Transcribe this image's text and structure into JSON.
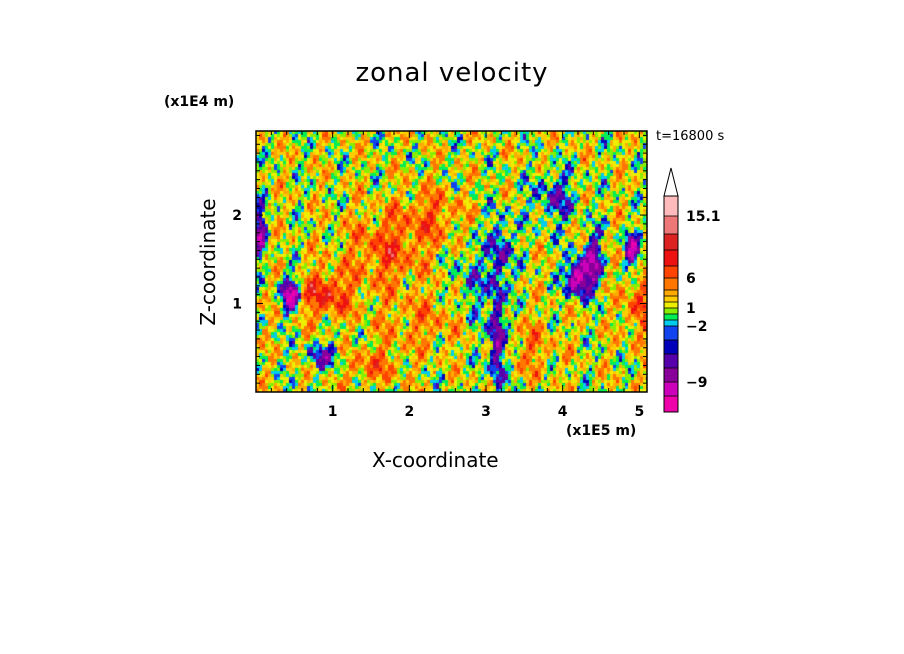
{
  "chart_data": {
    "type": "heatmap",
    "title": "zonal velocity",
    "xlabel": "X-coordinate",
    "ylabel": "Z-coordinate",
    "x_unit": "(x1E5 m)",
    "y_unit": "(x1E4 m)",
    "time_label": "t=16800 s",
    "xlim": [
      0,
      5.1
    ],
    "ylim": [
      0,
      2.95
    ],
    "x_ticks": [
      1,
      2,
      3,
      4,
      5
    ],
    "y_ticks": [
      1,
      2
    ],
    "colorbar": {
      "levels": [
        -16,
        -12,
        -9,
        -6,
        -4,
        -3,
        -2,
        -1,
        0,
        1,
        2,
        3,
        4,
        6,
        8,
        10,
        12,
        15.1,
        20
      ],
      "colors": [
        "#ee00aa",
        "#cc00bb",
        "#880099",
        "#5500aa",
        "#0000bb",
        "#1144ee",
        "#00ccee",
        "#00ee55",
        "#88ee00",
        "#eeee00",
        "#ffcc00",
        "#ffaa00",
        "#ff7700",
        "#ff4400",
        "#ee1111",
        "#dd2222",
        "#ee7777",
        "#ffbbbb"
      ],
      "tick_labels": [
        {
          "value": 15.1,
          "label": "15.1"
        },
        {
          "value": 6,
          "label": "6"
        },
        {
          "value": 1,
          "label": "1"
        },
        {
          "value": -2,
          "label": "−2"
        },
        {
          "value": -9,
          "label": "−9"
        }
      ],
      "extend_max": true
    }
  }
}
